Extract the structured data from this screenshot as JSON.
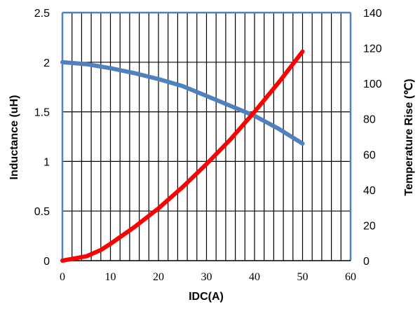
{
  "chart_data": {
    "type": "line",
    "xlabel": "IDC(A)",
    "ylabel": "Inductance (uH)",
    "y2label": "Temperature Rise (℃)",
    "xlim": [
      0,
      60
    ],
    "ylim": [
      0,
      2.5
    ],
    "y2lim": [
      0,
      140
    ],
    "x_ticks": [
      "0",
      "10",
      "20",
      "30",
      "40",
      "50",
      "60"
    ],
    "y_ticks": [
      "0",
      "0.5",
      "1",
      "1.5",
      "2",
      "2.5"
    ],
    "y2_ticks": [
      "0",
      "20",
      "40",
      "60",
      "80",
      "100",
      "120",
      "140"
    ],
    "grid": true,
    "vertical_grid_step": 2,
    "series": [
      {
        "axis": "left",
        "color": "#4F81BD",
        "x": [
          0,
          5,
          10,
          15,
          20,
          25,
          30,
          35,
          40,
          45,
          50
        ],
        "values": [
          2.0,
          1.98,
          1.94,
          1.89,
          1.83,
          1.76,
          1.66,
          1.56,
          1.46,
          1.33,
          1.18
        ]
      },
      {
        "axis": "right",
        "color": "#FF0000",
        "x": [
          0,
          5,
          8,
          10,
          15,
          20,
          25,
          30,
          35,
          40,
          45,
          50
        ],
        "values": [
          0,
          2.5,
          6,
          9.5,
          19,
          29.5,
          41.5,
          54.5,
          68.5,
          84,
          100.5,
          118
        ]
      }
    ]
  }
}
